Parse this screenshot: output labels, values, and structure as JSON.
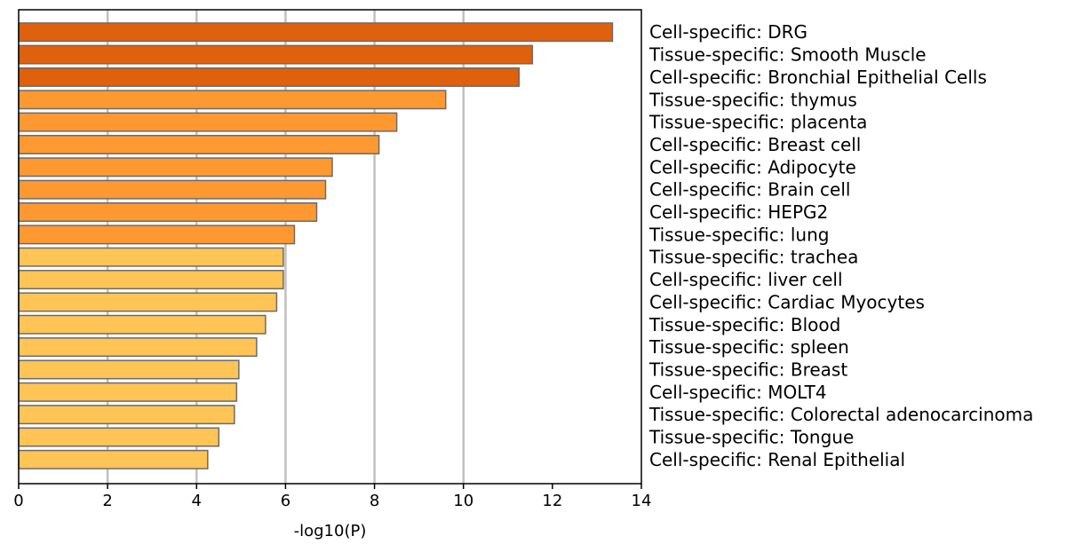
{
  "chart_data": {
    "type": "bar",
    "orientation": "horizontal",
    "title": "",
    "xlabel": "-log10(P)",
    "ylabel": "",
    "xlim": [
      0,
      14
    ],
    "xticks": [
      0,
      2,
      4,
      6,
      8,
      10,
      12,
      14
    ],
    "xtick_labels": [
      "0",
      "2",
      "4",
      "6",
      "8",
      "10",
      "12",
      "14"
    ],
    "vertical_gridlines_at": [
      2,
      4,
      6,
      8,
      10
    ],
    "category_labels_position": "right",
    "categories": [
      "Cell-specific: DRG",
      "Tissue-specific: Smooth Muscle",
      "Cell-specific: Bronchial Epithelial Cells",
      "Tissue-specific: thymus",
      "Tissue-specific: placenta",
      "Cell-specific: Breast cell",
      "Cell-specific: Adipocyte",
      "Cell-specific: Brain cell",
      "Cell-specific: HEPG2",
      "Tissue-specific: lung",
      "Tissue-specific: trachea",
      "Cell-specific: liver cell",
      "Cell-specific: Cardiac Myocytes",
      "Tissue-specific: Blood",
      "Tissue-specific: spleen",
      "Tissue-specific: Breast",
      "Cell-specific: MOLT4",
      "Tissue-specific: Colorectal adenocarcinoma",
      "Tissue-specific: Tongue",
      "Cell-specific: Renal Epithelial"
    ],
    "values": [
      13.35,
      11.55,
      11.25,
      9.6,
      8.5,
      8.1,
      7.05,
      6.9,
      6.7,
      6.2,
      5.95,
      5.95,
      5.8,
      5.55,
      5.35,
      4.95,
      4.9,
      4.85,
      4.5,
      4.25
    ],
    "colors": {
      "tier_dark": "#df600d",
      "tier_mid": "#fe9932",
      "tier_light": "#fec455",
      "bar_edge": "#6b6b6b",
      "gridline": "#c0c0c0",
      "axis": "#000000"
    },
    "bar_color_tiers": [
      "dark",
      "dark",
      "dark",
      "mid",
      "mid",
      "mid",
      "mid",
      "mid",
      "mid",
      "mid",
      "light",
      "light",
      "light",
      "light",
      "light",
      "light",
      "light",
      "light",
      "light",
      "light"
    ]
  }
}
